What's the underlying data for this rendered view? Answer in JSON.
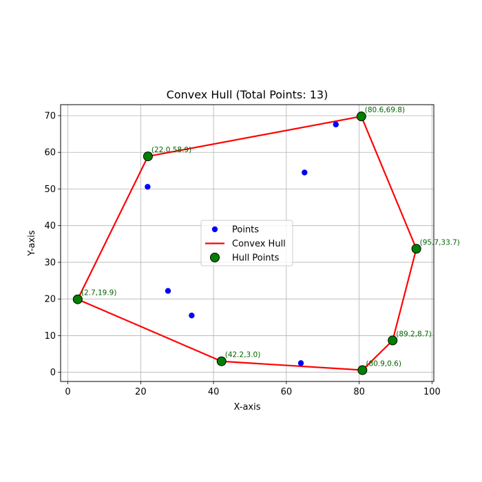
{
  "chart_data": {
    "type": "scatter",
    "title": "Convex Hull (Total Points: 13)",
    "xlabel": "X-axis",
    "ylabel": "Y-axis",
    "xlim": [
      -2,
      100.5
    ],
    "ylim": [
      -2.5,
      73
    ],
    "xticks": [
      0,
      20,
      40,
      60,
      80,
      100
    ],
    "yticks": [
      0,
      10,
      20,
      30,
      40,
      50,
      60,
      70
    ],
    "grid": true,
    "legend": {
      "placement": "center",
      "entries": [
        {
          "label": "Points",
          "marker": "dot",
          "color": "#0000ff"
        },
        {
          "label": "Convex Hull",
          "marker": "line",
          "color": "#ff0000"
        },
        {
          "label": "Hull Points",
          "marker": "big-dot",
          "color": "#007f00"
        }
      ]
    },
    "interior_points": [
      {
        "x": 73.6,
        "y": 67.6
      },
      {
        "x": 65.0,
        "y": 54.5
      },
      {
        "x": 21.9,
        "y": 50.6
      },
      {
        "x": 27.5,
        "y": 22.2
      },
      {
        "x": 34.0,
        "y": 15.5
      },
      {
        "x": 64.0,
        "y": 2.5
      }
    ],
    "hull_points": [
      {
        "x": 80.6,
        "y": 69.8,
        "label": "(80.6,69.8)"
      },
      {
        "x": 95.7,
        "y": 33.7,
        "label": "(95.7,33.7)"
      },
      {
        "x": 89.2,
        "y": 8.7,
        "label": "(89.2,8.7)"
      },
      {
        "x": 80.9,
        "y": 0.6,
        "label": "(80.9,0.6)"
      },
      {
        "x": 42.2,
        "y": 3.0,
        "label": "(42.2,3.0)"
      },
      {
        "x": 2.7,
        "y": 19.9,
        "label": "(2.7,19.9)"
      },
      {
        "x": 22.0,
        "y": 58.9,
        "label": "(22.0,58.9)"
      }
    ],
    "colors": {
      "points": "#0000ff",
      "hull_line": "#ff0000",
      "hull_points": "#007f00",
      "annotation": "#006400",
      "grid": "#b0b0b0"
    }
  }
}
